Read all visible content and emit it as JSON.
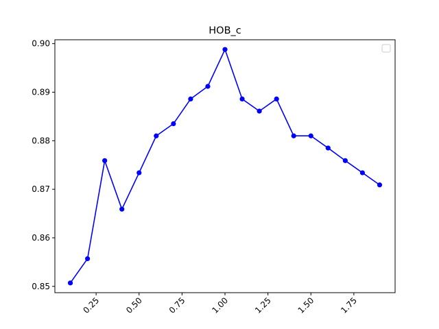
{
  "chart_data": {
    "type": "line",
    "title": "HOB_c",
    "xlabel": "",
    "ylabel": "",
    "x": [
      0.1,
      0.2,
      0.3,
      0.4,
      0.5,
      0.6,
      0.7,
      0.8,
      0.9,
      1.0,
      1.1,
      1.2,
      1.3,
      1.4,
      1.5,
      1.6,
      1.7,
      1.8,
      1.9
    ],
    "series": [
      {
        "values": [
          0.8507,
          0.8557,
          0.8759,
          0.8659,
          0.8734,
          0.881,
          0.8835,
          0.8886,
          0.8912,
          0.8988,
          0.8886,
          0.8861,
          0.8886,
          0.881,
          0.881,
          0.8785,
          0.8759,
          0.8734,
          0.8709
        ],
        "color": "#0000ff"
      }
    ],
    "xlim": [
      0.01,
      1.99
    ],
    "ylim": [
      0.8487,
      0.9008
    ],
    "xticks": [
      "0.25",
      "0.50",
      "0.75",
      "1.00",
      "1.25",
      "1.50",
      "1.75"
    ],
    "yticks": [
      "0.85",
      "0.86",
      "0.87",
      "0.88",
      "0.89",
      "0.90"
    ],
    "xtick_rotation": 45,
    "grid": false,
    "legend": "top-right (empty)"
  }
}
